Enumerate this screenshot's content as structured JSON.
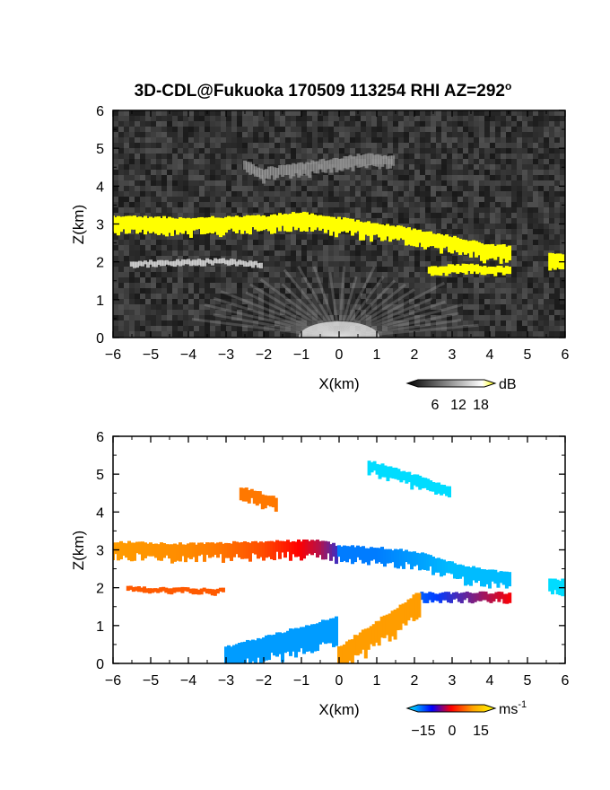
{
  "figure": {
    "title_main": "3D-CDL@Fukuoka 170509 113254 RHI AZ=292",
    "title_degree": "o"
  },
  "chart_data": [
    {
      "type": "heatmap",
      "panel": "top",
      "quantity": "backscatter SNR",
      "xlabel": "X(km)",
      "ylabel": "Z(km)",
      "xlim": [
        -6,
        6
      ],
      "ylim": [
        0,
        6
      ],
      "xticks": [
        "-6",
        "-5",
        "-4",
        "-3",
        "-2",
        "-1",
        "0",
        "1",
        "2",
        "3",
        "4",
        "5",
        "6"
      ],
      "yticks": [
        "0",
        "1",
        "2",
        "3",
        "4",
        "5",
        "6"
      ],
      "background": "grayscale noise",
      "features": [
        {
          "name": "upper layer",
          "x": [
            -6.0,
            -4.0,
            -2.0,
            -1.0,
            0.0,
            1.0,
            2.0,
            3.0,
            4.0,
            4.6
          ],
          "z": [
            3.0,
            2.95,
            3.0,
            3.1,
            2.95,
            2.8,
            2.65,
            2.45,
            2.25,
            2.2
          ],
          "db": 18
        },
        {
          "name": "lower layer",
          "x": [
            2.4,
            3.0,
            3.6,
            4.0,
            4.6
          ],
          "z": [
            1.75,
            1.8,
            1.8,
            1.75,
            1.75
          ],
          "db": 18
        },
        {
          "name": "right echo",
          "x": [
            5.6,
            6.0
          ],
          "z": [
            2.0,
            2.0
          ],
          "db": 18
        },
        {
          "name": "mid-level streaks",
          "x": [
            -5.5,
            -3.0,
            -2.0
          ],
          "z": [
            1.95,
            2.0,
            1.9
          ],
          "db": 10
        },
        {
          "name": "elevated patches",
          "x": [
            -2.5,
            -2.0,
            0.8,
            1.5
          ],
          "z": [
            4.5,
            4.3,
            4.7,
            4.6
          ],
          "db": 8
        },
        {
          "name": "near-ground clutter",
          "x": [
            -3.5,
            3.5
          ],
          "z": [
            0.0,
            0.8
          ],
          "db": 10
        }
      ],
      "colorbar": {
        "unit": "dB",
        "ticks": [
          "6",
          "12",
          "18"
        ],
        "colors": [
          "#000000",
          "#ffffff",
          "#ffff00"
        ]
      }
    },
    {
      "type": "heatmap",
      "panel": "bottom",
      "quantity": "radial velocity",
      "xlabel": "X(km)",
      "ylabel": "Z(km)",
      "xlim": [
        -6,
        6
      ],
      "ylim": [
        0,
        6
      ],
      "xticks": [
        "-6",
        "-5",
        "-4",
        "-3",
        "-2",
        "-1",
        "0",
        "1",
        "2",
        "3",
        "4",
        "5",
        "6"
      ],
      "yticks": [
        "0",
        "1",
        "2",
        "3",
        "4",
        "5",
        "6"
      ],
      "features": [
        {
          "name": "upper layer (x<0)",
          "x": [
            -6.0,
            -4.0,
            -2.0,
            -0.5,
            0.0
          ],
          "z": [
            3.0,
            2.95,
            3.0,
            3.05,
            2.9
          ],
          "velocity": [
            12,
            10,
            5,
            -3,
            -8
          ]
        },
        {
          "name": "upper layer (x>0)",
          "x": [
            0.0,
            1.0,
            2.0,
            3.0,
            4.0,
            4.6
          ],
          "z": [
            2.9,
            2.85,
            2.75,
            2.45,
            2.25,
            2.2
          ],
          "velocity": [
            -14,
            -14,
            -16,
            -18,
            -18,
            -18
          ]
        },
        {
          "name": "right echo",
          "x": [
            5.6,
            6.0
          ],
          "z": [
            2.0,
            2.0
          ],
          "velocity": -20
        },
        {
          "name": "lower layer",
          "x": [
            2.2,
            4.6
          ],
          "z": [
            1.75,
            1.75
          ],
          "velocity": [
            -12,
            0
          ]
        },
        {
          "name": "mid streak left",
          "x": [
            -5.6,
            -3.0
          ],
          "z": [
            1.95,
            1.9
          ],
          "velocity": 6
        },
        {
          "name": "elevated left",
          "x": [
            -2.6,
            -1.6
          ],
          "z": [
            4.5,
            4.2
          ],
          "velocity": 8
        },
        {
          "name": "elevated right",
          "x": [
            0.8,
            3.0
          ],
          "z": [
            5.2,
            4.5
          ],
          "velocity": -20
        },
        {
          "name": "near-ground left",
          "x": [
            -3.0,
            0.0
          ],
          "z": [
            0.1,
            0.9
          ],
          "velocity": -16
        },
        {
          "name": "near-ground right",
          "x": [
            0.0,
            2.2
          ],
          "z": [
            0.1,
            1.6
          ],
          "velocity": 12
        }
      ],
      "colorbar": {
        "unit": "ms",
        "unit_exponent": "-1",
        "ticks": [
          "−15",
          "0",
          "15"
        ],
        "colors": [
          "#00ffff",
          "#0000ff",
          "#ff0000",
          "#ffa500",
          "#ffff00"
        ]
      }
    }
  ]
}
